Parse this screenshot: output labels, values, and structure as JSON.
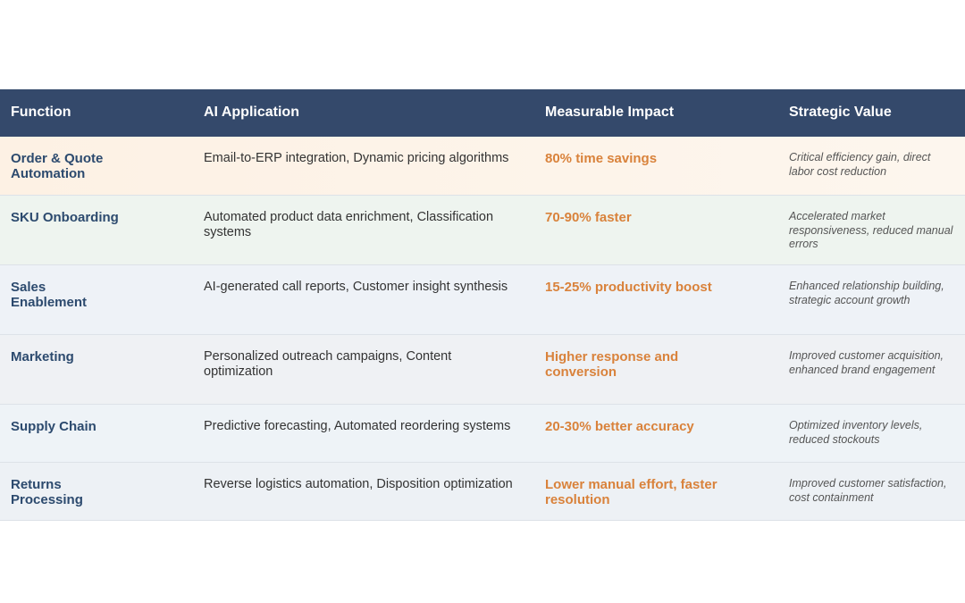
{
  "table": {
    "headers": [
      "Function",
      "AI Application",
      "Measurable Impact",
      "Strategic Value"
    ],
    "rows": [
      [
        "Order & Quote Automation",
        "Email-to-ERP integration, Dynamic pricing algorithms",
        "80% time savings",
        "Critical efficiency gain, direct labor cost reduction"
      ],
      [
        "SKU Onboarding",
        "Automated product data enrichment, Classification systems",
        "70-90% faster",
        "Accelerated market responsiveness, reduced manual errors"
      ],
      [
        "Sales Enablement",
        "AI-generated call reports, Customer insight synthesis",
        "15-25% productivity boost",
        "Enhanced relationship building, strategic account growth"
      ],
      [
        "Marketing",
        "Personalized outreach campaigns, Content optimization",
        "Higher response and conversion",
        "Improved customer acquisition, enhanced brand engagement"
      ],
      [
        "Supply Chain",
        "Predictive forecasting, Automated reordering systems",
        "20-30% better accuracy",
        "Optimized inventory levels, reduced stockouts"
      ],
      [
        "Returns Processing",
        "Reverse logistics automation, Disposition optimization",
        "Lower manual effort, faster resolution",
        "Improved customer satisfaction, cost containment"
      ]
    ]
  }
}
